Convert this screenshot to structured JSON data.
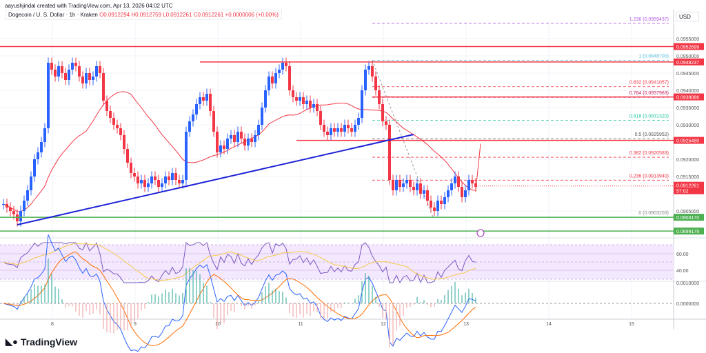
{
  "header": {
    "credit": "aayushjindal created with TradingView.com, Apr 13, 2026 04:02 UTC",
    "symbol": "Dogecoin / U. S. Dollar · 1h · Kraken",
    "open": "O0.0912294",
    "high": "H0.0912759",
    "low": "L0.0912261",
    "close": "C0.0912261",
    "change": "+0.0000006 (+0.00%)"
  },
  "currency": "USD",
  "logo": "TradingView",
  "colors": {
    "up": "#2962ff",
    "down": "#f23645",
    "ma": "#f23645",
    "trendline": "#1e22d6",
    "support": "#4caf50",
    "rsi": "#7e57c2"
  },
  "chart_data": {
    "type": "candlestick",
    "timeframe": "1h",
    "first_candle": "Apr 7 10:00",
    "closes": [
      0.0907,
      0.0906,
      0.0905,
      0.0904,
      0.0902,
      0.0905,
      0.0908,
      0.0911,
      0.0915,
      0.092,
      0.0922,
      0.0925,
      0.0929,
      0.0948,
      0.0946,
      0.0944,
      0.0947,
      0.0945,
      0.0943,
      0.0946,
      0.0948,
      0.0947,
      0.0944,
      0.0942,
      0.0945,
      0.0943,
      0.0944,
      0.0947,
      0.0945,
      0.0937,
      0.0934,
      0.0932,
      0.093,
      0.0929,
      0.0927,
      0.0923,
      0.0919,
      0.0916,
      0.0915,
      0.0913,
      0.0914,
      0.0912,
      0.0913,
      0.0915,
      0.0914,
      0.0912,
      0.0913,
      0.0915,
      0.0914,
      0.0916,
      0.0914,
      0.0913,
      0.0914,
      0.0928,
      0.0931,
      0.0933,
      0.0936,
      0.0938,
      0.0937,
      0.0939,
      0.0934,
      0.0928,
      0.0922,
      0.0924,
      0.0923,
      0.0926,
      0.0927,
      0.0925,
      0.0928,
      0.0926,
      0.0924,
      0.0926,
      0.0925,
      0.0927,
      0.093,
      0.0935,
      0.094,
      0.0944,
      0.0942,
      0.0945,
      0.0946,
      0.0948,
      0.0947,
      0.094,
      0.0938,
      0.0937,
      0.0938,
      0.0936,
      0.0937,
      0.0935,
      0.0936,
      0.0934,
      0.093,
      0.0928,
      0.0927,
      0.0929,
      0.0928,
      0.0929,
      0.0928,
      0.093,
      0.0929,
      0.0928,
      0.093,
      0.0932,
      0.094,
      0.0946,
      0.0947,
      0.0944,
      0.094,
      0.0936,
      0.0931,
      0.093,
      0.0914,
      0.0911,
      0.0914,
      0.0912,
      0.0913,
      0.0914,
      0.0912,
      0.0911,
      0.0913,
      0.091,
      0.0911,
      0.0908,
      0.0906,
      0.0905,
      0.0908,
      0.0907,
      0.0909,
      0.0911,
      0.0913,
      0.0915,
      0.0912,
      0.0909,
      0.0911,
      0.0914,
      0.0913,
      0.0912
    ],
    "price_ticks": [
      "0.0955000",
      "0.0950000",
      "0.0945000",
      "0.0940000",
      "0.0935000",
      "0.0930000",
      "0.0920000",
      "0.0915000",
      "0.0905000"
    ],
    "price_tick_values": [
      0.0955,
      0.095,
      0.0945,
      0.094,
      0.0935,
      0.093,
      0.092,
      0.0915,
      0.0905
    ],
    "x_ticks": [
      "8",
      "9",
      "10",
      "11",
      "12",
      "13",
      "14",
      "15"
    ],
    "fib_levels": [
      {
        "label": "1.236 (0.0959437)",
        "price": 0.0959437,
        "color": "#b35ce0"
      },
      {
        "label": "1 (0.0948700)",
        "price": 0.09487,
        "color": "#5bc0de"
      },
      {
        "label": "0.832 (0.0941057)",
        "price": 0.0941057,
        "color": "#f23645"
      },
      {
        "label": "0.764 (0.0937963)",
        "price": 0.0937963,
        "color": "#c2185b"
      },
      {
        "label": "0.618 (0.0931320)",
        "price": 0.093132,
        "color": "#26c6a0"
      },
      {
        "label": "0.5 (0.0925952)",
        "price": 0.0925952,
        "color": "#555"
      },
      {
        "label": "0.382 (0.0920583)",
        "price": 0.0920583,
        "color": "#f23645"
      },
      {
        "label": "0.236 (0.0913940)",
        "price": 0.091394,
        "color": "#f23645"
      },
      {
        "label": "0 (0.0903203)",
        "price": 0.0903203,
        "color": "#888"
      }
    ],
    "resistance_lines": [
      {
        "label": "0.0952699",
        "price": 0.0952699
      },
      {
        "label": "0.0948237",
        "price": 0.0948237
      },
      {
        "label": "0.0938086",
        "price": 0.0938086
      },
      {
        "label": "0.0925480",
        "price": 0.092548
      }
    ],
    "support_lines": [
      {
        "label": "0.0903170",
        "price": 0.090317
      },
      {
        "label": "0.0899179",
        "price": 0.0899179
      }
    ],
    "last_price": {
      "label": "0.0912261",
      "countdown": "57:02"
    },
    "rsi": {
      "ticks": [
        "60.00",
        "40.00"
      ]
    },
    "macd": {
      "ticks": [
        "0.0010000",
        "0.0000000"
      ]
    }
  }
}
